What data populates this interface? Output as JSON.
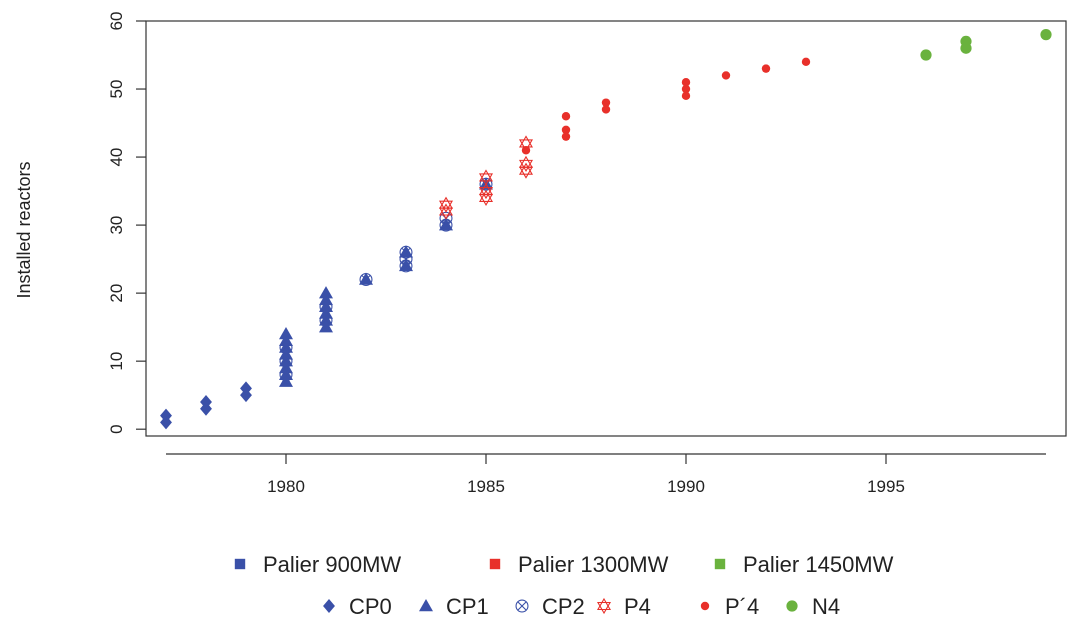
{
  "chart_data": {
    "type": "scatter",
    "title": "",
    "xlabel": "",
    "ylabel": "Installed reactors",
    "xlim": [
      1976.5,
      1999.5
    ],
    "ylim": [
      -1,
      60
    ],
    "xticks": [
      1980,
      1985,
      1990,
      1995
    ],
    "yticks": [
      0,
      10,
      20,
      30,
      40,
      50,
      60
    ],
    "grid": false,
    "legend_position": "bottom",
    "palier_legend": [
      {
        "label": "Palier 900MW",
        "color": "#3a50a8"
      },
      {
        "label": "Palier 1300MW",
        "color": "#e8302a"
      },
      {
        "label": "Palier 1450MW",
        "color": "#6ab23e"
      }
    ],
    "series": [
      {
        "name": "CP0",
        "palier": "Palier 900MW",
        "marker": "diamond",
        "color": "#3a50a8",
        "points": [
          [
            1977,
            1
          ],
          [
            1977,
            2
          ],
          [
            1978,
            3
          ],
          [
            1978,
            4
          ],
          [
            1979,
            5
          ],
          [
            1979,
            6
          ]
        ]
      },
      {
        "name": "CP1",
        "palier": "Palier 900MW",
        "marker": "triangle",
        "color": "#3a50a8",
        "points": [
          [
            1980,
            7
          ],
          [
            1980,
            8
          ],
          [
            1980,
            9
          ],
          [
            1980,
            10
          ],
          [
            1980,
            11
          ],
          [
            1980,
            12
          ],
          [
            1980,
            13
          ],
          [
            1980,
            14
          ],
          [
            1981,
            15
          ],
          [
            1981,
            16
          ],
          [
            1981,
            17
          ],
          [
            1981,
            18
          ],
          [
            1981,
            19
          ],
          [
            1981,
            20
          ],
          [
            1982,
            22
          ],
          [
            1983,
            24
          ],
          [
            1983,
            26
          ],
          [
            1984,
            30
          ],
          [
            1985,
            36
          ]
        ]
      },
      {
        "name": "CP2",
        "palier": "Palier 900MW",
        "marker": "circle-x",
        "color": "#3a50a8",
        "points": [
          [
            1980,
            8
          ],
          [
            1980,
            10
          ],
          [
            1980,
            12
          ],
          [
            1981,
            16
          ],
          [
            1981,
            18
          ],
          [
            1982,
            22
          ],
          [
            1983,
            24
          ],
          [
            1983,
            25
          ],
          [
            1983,
            26
          ],
          [
            1984,
            30
          ],
          [
            1984,
            31
          ],
          [
            1985,
            36
          ]
        ]
      },
      {
        "name": "P4",
        "palier": "Palier 1300MW",
        "marker": "star-of-david",
        "color": "#e8302a",
        "points": [
          [
            1984,
            32
          ],
          [
            1984,
            33
          ],
          [
            1985,
            34
          ],
          [
            1985,
            35
          ],
          [
            1985,
            37
          ],
          [
            1986,
            38
          ],
          [
            1986,
            39
          ],
          [
            1986,
            42
          ]
        ]
      },
      {
        "name": "P´4",
        "palier": "Palier 1300MW",
        "marker": "dot",
        "color": "#e8302a",
        "points": [
          [
            1986,
            41
          ],
          [
            1987,
            43
          ],
          [
            1987,
            44
          ],
          [
            1987,
            46
          ],
          [
            1988,
            47
          ],
          [
            1988,
            48
          ],
          [
            1990,
            49
          ],
          [
            1990,
            50
          ],
          [
            1990,
            51
          ],
          [
            1991,
            52
          ],
          [
            1992,
            53
          ],
          [
            1993,
            54
          ]
        ]
      },
      {
        "name": "N4",
        "palier": "Palier 1450MW",
        "marker": "dot-large",
        "color": "#6ab23e",
        "points": [
          [
            1996,
            55
          ],
          [
            1997,
            56
          ],
          [
            1997,
            57
          ],
          [
            1999,
            58
          ]
        ]
      }
    ]
  }
}
